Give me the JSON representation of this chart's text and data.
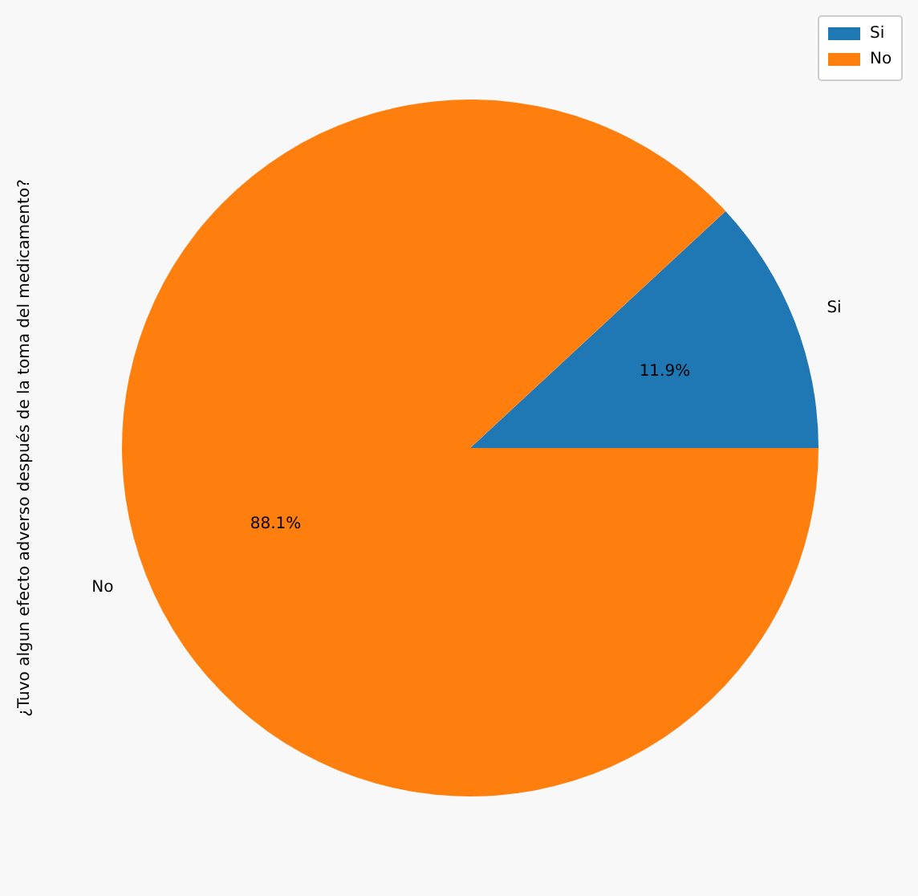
{
  "chart_data": {
    "type": "pie",
    "ylabel": "¿Tuvo algun efecto adverso después de la toma del medicamento?",
    "categories": [
      "Si",
      "No"
    ],
    "values": [
      11.9,
      88.1
    ],
    "colors": [
      "#1f77b4",
      "#ff7f0e"
    ],
    "value_labels": [
      "11.9%",
      "88.1%"
    ],
    "legend": "top right"
  }
}
